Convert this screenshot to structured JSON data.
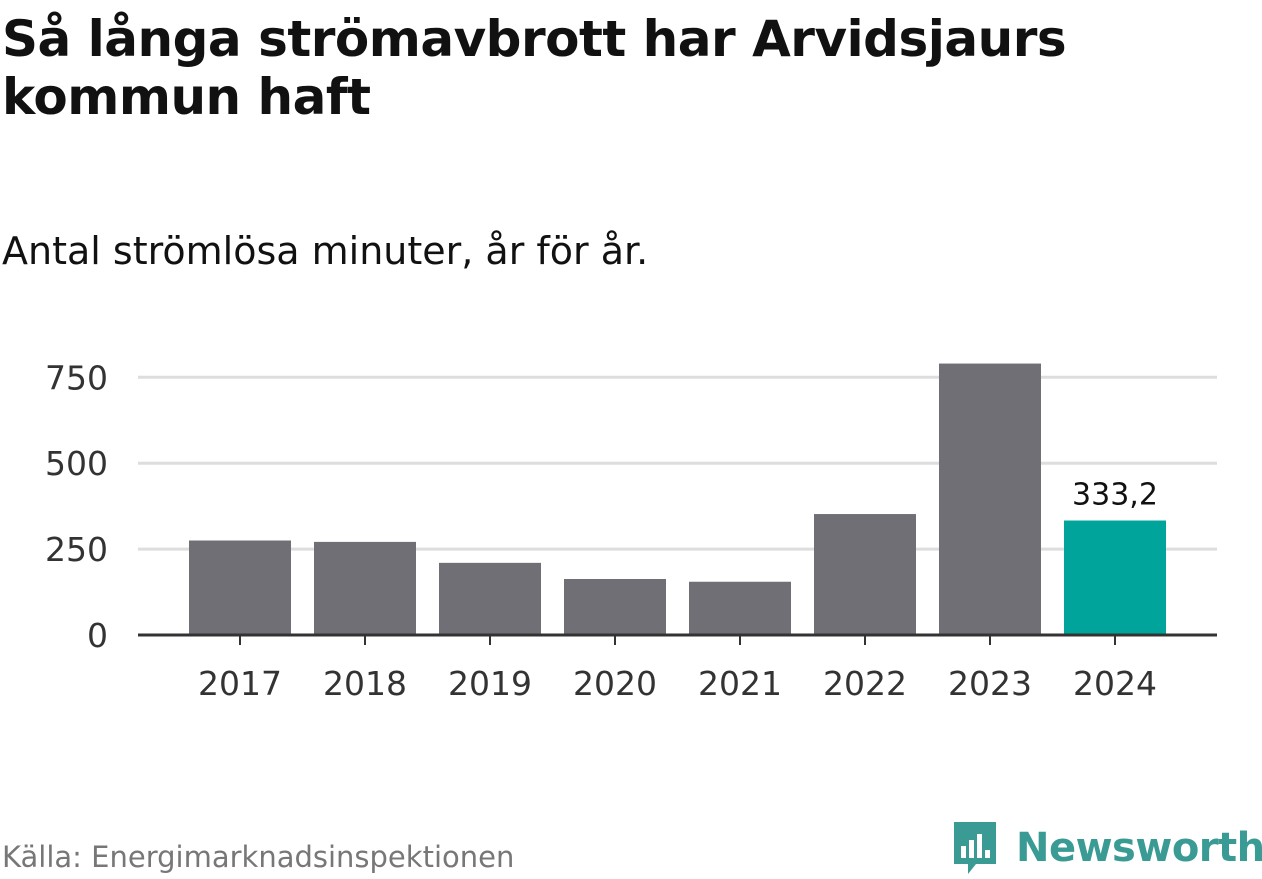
{
  "title": "Så långa strömavbrott har Arvidsjaurs kommun haft",
  "subtitle": "Antal strömlösa minuter, år för år.",
  "source": "Källa: Energimarknadsinspektionen",
  "brand": "Newsworthy",
  "colors": {
    "bar": "#706f75",
    "highlight": "#00a49a",
    "grid": "#dddddd",
    "axis": "#333333",
    "brand": "#3a9a94"
  },
  "chart_data": {
    "type": "bar",
    "title": "Så långa strömavbrott har Arvidsjaurs kommun haft",
    "subtitle": "Antal strömlösa minuter, år för år.",
    "xlabel": "",
    "ylabel": "",
    "categories": [
      "2017",
      "2018",
      "2019",
      "2020",
      "2021",
      "2022",
      "2023",
      "2024"
    ],
    "values": [
      275,
      271,
      210,
      163,
      155,
      352,
      790,
      333.2
    ],
    "highlight_index": 7,
    "data_labels": [
      {
        "index": 7,
        "text": "333,2"
      }
    ],
    "yticks": [
      0,
      250,
      500,
      750
    ],
    "ylim": [
      0,
      800
    ],
    "grid": true
  }
}
